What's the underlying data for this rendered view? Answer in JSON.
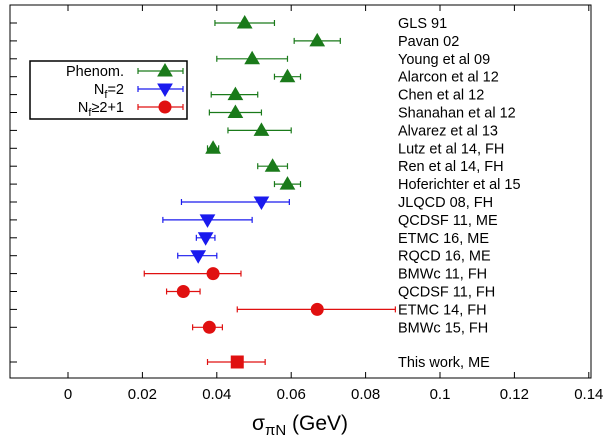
{
  "chart_data": {
    "type": "scatter",
    "title": "",
    "xlabel_main": "σ",
    "xlabel_sub": "πN",
    "xlabel_unit": " (GeV)",
    "xlim": [
      -0.016,
      0.146
    ],
    "xticks": [
      0,
      0.02,
      0.04,
      0.06,
      0.08,
      0.1,
      0.12,
      0.14
    ],
    "xtick_labels": [
      "0",
      "0.02",
      "0.04",
      "0.06",
      "0.08",
      "0.1",
      "0.12",
      "0.14"
    ],
    "grid": false,
    "legend_position": "top-left",
    "legend": [
      {
        "series": "phenom",
        "parts": [
          {
            "t": "Phenom."
          }
        ]
      },
      {
        "series": "nf2",
        "parts": [
          {
            "t": "N"
          },
          {
            "t": "f",
            "sub": true
          },
          {
            "t": "=2"
          }
        ]
      },
      {
        "series": "nf21",
        "parts": [
          {
            "t": "N"
          },
          {
            "t": "f",
            "sub": true
          },
          {
            "t": "≥2+1"
          }
        ]
      }
    ],
    "series": [
      {
        "id": "phenom",
        "marker": "triangle-up",
        "color": "#1a7a1a"
      },
      {
        "id": "nf2",
        "marker": "triangle-down",
        "color": "#1a1aee"
      },
      {
        "id": "nf21",
        "marker": "circle",
        "color": "#e01010"
      },
      {
        "id": "this",
        "marker": "square",
        "color": "#e01010"
      }
    ],
    "points": [
      {
        "label": "GLS 91",
        "series": "phenom",
        "value": 0.0475,
        "err_low": 0.008,
        "err_high": 0.008
      },
      {
        "label": "Pavan 02",
        "series": "phenom",
        "value": 0.067,
        "err_low": 0.0062,
        "err_high": 0.0062
      },
      {
        "label": "Young et al 09",
        "series": "phenom",
        "value": 0.0495,
        "err_low": 0.0095,
        "err_high": 0.0095
      },
      {
        "label": "Alarcon et al 12",
        "series": "phenom",
        "value": 0.059,
        "err_low": 0.0035,
        "err_high": 0.0035
      },
      {
        "label": "Chen et al 12",
        "series": "phenom",
        "value": 0.045,
        "err_low": 0.0065,
        "err_high": 0.006
      },
      {
        "label": "Shanahan et al 12",
        "series": "phenom",
        "value": 0.045,
        "err_low": 0.007,
        "err_high": 0.007
      },
      {
        "label": "Alvarez et al 13",
        "series": "phenom",
        "value": 0.052,
        "err_low": 0.009,
        "err_high": 0.008
      },
      {
        "label": "Lutz et al 14, FH",
        "series": "phenom",
        "value": 0.039,
        "err_low": 0.0015,
        "err_high": 0.0015
      },
      {
        "label": "Ren et al 14, FH",
        "series": "phenom",
        "value": 0.055,
        "err_low": 0.004,
        "err_high": 0.004
      },
      {
        "label": "Hoferichter et al 15",
        "series": "phenom",
        "value": 0.059,
        "err_low": 0.0035,
        "err_high": 0.0035
      },
      {
        "label": "JLQCD 08, FH",
        "series": "nf2",
        "value": 0.052,
        "err_low": 0.0215,
        "err_high": 0.0075
      },
      {
        "label": "QCDSF 11, ME",
        "series": "nf2",
        "value": 0.0375,
        "err_low": 0.012,
        "err_high": 0.012
      },
      {
        "label": "ETMC 16, ME",
        "series": "nf2",
        "value": 0.037,
        "err_low": 0.0025,
        "err_high": 0.0025
      },
      {
        "label": "RQCD 16, ME",
        "series": "nf2",
        "value": 0.035,
        "err_low": 0.0055,
        "err_high": 0.005
      },
      {
        "label": "BMWc 11, FH",
        "series": "nf21",
        "value": 0.039,
        "err_low": 0.0185,
        "err_high": 0.0075
      },
      {
        "label": "QCDSF 11, FH",
        "series": "nf21",
        "value": 0.031,
        "err_low": 0.0045,
        "err_high": 0.0045
      },
      {
        "label": "ETMC 14, FH",
        "series": "nf21",
        "value": 0.067,
        "err_low": 0.0215,
        "err_high": 0.021
      },
      {
        "label": "BMWc 15, FH",
        "series": "nf21",
        "value": 0.038,
        "err_low": 0.0045,
        "err_high": 0.0035
      },
      {
        "label": "This work, ME",
        "series": "this",
        "value": 0.0455,
        "err_low": 0.008,
        "err_high": 0.0075
      }
    ]
  }
}
